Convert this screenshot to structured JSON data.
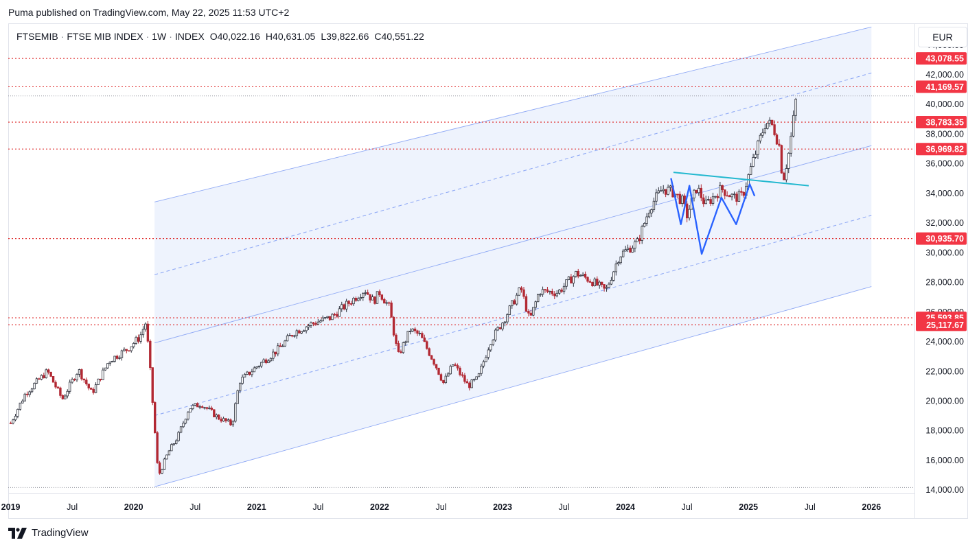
{
  "header": {
    "published_text": "Puma published on TradingView.com, May 22, 2025 11:53 UTC+2"
  },
  "legend": {
    "symbol": "FTSEMIB",
    "name": "FTSE MIB INDEX",
    "interval": "1W",
    "type": "INDEX",
    "open_label": "O",
    "open": "40,022.16",
    "high_label": "H",
    "high": "40,631.05",
    "low_label": "L",
    "low": "39,822.66",
    "close_label": "C",
    "close": "40,551.22"
  },
  "currency": "EUR",
  "footer": {
    "brand": "TradingView"
  },
  "colors": {
    "up": "#2a2e39",
    "down": "#b22833",
    "channel_fill": "#eef3fd",
    "channel_line": "#8fa9f5",
    "level_line": "#e03131",
    "label_bg": "#f23645",
    "pattern_line": "#2962ff",
    "neckline": "#22b8cf"
  },
  "chart_data": {
    "type": "candlestick",
    "title": "FTSEMIB · FTSE MIB INDEX · 1W · INDEX",
    "ylim": [
      13800,
      45400
    ],
    "y_ticks": [
      14000,
      16000,
      18000,
      20000,
      22000,
      24000,
      26000,
      28000,
      30000,
      32000,
      34000,
      36000,
      38000,
      40000,
      42000,
      44000
    ],
    "y_tick_labels": [
      "14,000.00",
      "16,000.00",
      "18,000.00",
      "20,000.00",
      "22,000.00",
      "24,000.00",
      "26,000.00",
      "28,000.00",
      "30,000.00",
      "32,000.00",
      "34,000.00",
      "36,000.00",
      "38,000.00",
      "40,000.00",
      "42,000.00",
      "44,000.00"
    ],
    "x_labels": [
      "2019",
      "Jul",
      "2020",
      "Jul",
      "2021",
      "Jul",
      "2022",
      "Jul",
      "2023",
      "Jul",
      "2024",
      "Jul",
      "2025",
      "Jul",
      "2026"
    ],
    "x_label_dates": [
      2019.0,
      2019.5,
      2020.0,
      2020.5,
      2021.0,
      2021.5,
      2022.0,
      2022.5,
      2023.0,
      2023.5,
      2024.0,
      2024.5,
      2025.0,
      2025.5,
      2026.0
    ],
    "horizontal_levels": [
      {
        "value": 43078.55,
        "label": "43,078.55"
      },
      {
        "value": 41169.57,
        "label": "41,169.57"
      },
      {
        "value": 38783.35,
        "label": "38,783.35"
      },
      {
        "value": 36969.82,
        "label": "36,969.82"
      },
      {
        "value": 30935.7,
        "label": "30,935.70"
      },
      {
        "value": 25593.85,
        "label": "25,593.85"
      },
      {
        "value": 25117.67,
        "label": "25,117.67"
      }
    ],
    "last_price": 40551.22,
    "keypoints": [
      [
        2019.0,
        18500
      ],
      [
        2019.12,
        20500
      ],
      [
        2019.3,
        22000
      ],
      [
        2019.42,
        20100
      ],
      [
        2019.55,
        22100
      ],
      [
        2019.66,
        20500
      ],
      [
        2019.8,
        22700
      ],
      [
        2019.95,
        23500
      ],
      [
        2020.05,
        24300
      ],
      [
        2020.1,
        25300
      ],
      [
        2020.13,
        22500
      ],
      [
        2020.2,
        14900
      ],
      [
        2020.28,
        16500
      ],
      [
        2020.36,
        17600
      ],
      [
        2020.45,
        19500
      ],
      [
        2020.55,
        19800
      ],
      [
        2020.68,
        18900
      ],
      [
        2020.8,
        18400
      ],
      [
        2020.86,
        21300
      ],
      [
        2021.0,
        22300
      ],
      [
        2021.18,
        23500
      ],
      [
        2021.3,
        24600
      ],
      [
        2021.45,
        25200
      ],
      [
        2021.6,
        25600
      ],
      [
        2021.75,
        26600
      ],
      [
        2021.88,
        27500
      ],
      [
        2021.95,
        26700
      ],
      [
        2022.0,
        27300
      ],
      [
        2022.08,
        26300
      ],
      [
        2022.15,
        23000
      ],
      [
        2022.25,
        24800
      ],
      [
        2022.33,
        24400
      ],
      [
        2022.45,
        22500
      ],
      [
        2022.52,
        21200
      ],
      [
        2022.6,
        22500
      ],
      [
        2022.72,
        21000
      ],
      [
        2022.8,
        21500
      ],
      [
        2022.9,
        24000
      ],
      [
        2023.0,
        25300
      ],
      [
        2023.15,
        27600
      ],
      [
        2023.22,
        25400
      ],
      [
        2023.3,
        27400
      ],
      [
        2023.45,
        27300
      ],
      [
        2023.6,
        28600
      ],
      [
        2023.72,
        28100
      ],
      [
        2023.84,
        27400
      ],
      [
        2023.95,
        29800
      ],
      [
        2024.1,
        30700
      ],
      [
        2024.2,
        33100
      ],
      [
        2024.3,
        34300
      ],
      [
        2024.38,
        34100
      ],
      [
        2024.46,
        33500
      ],
      [
        2024.5,
        32500
      ],
      [
        2024.58,
        34400
      ],
      [
        2024.65,
        33200
      ],
      [
        2024.78,
        34300
      ],
      [
        2024.88,
        33700
      ],
      [
        2024.95,
        33800
      ],
      [
        2025.05,
        36500
      ],
      [
        2025.14,
        38800
      ],
      [
        2025.2,
        38500
      ],
      [
        2025.25,
        37200
      ],
      [
        2025.28,
        34800
      ],
      [
        2025.33,
        36800
      ],
      [
        2025.36,
        38600
      ],
      [
        2025.39,
        40551
      ]
    ],
    "channel": {
      "upper": {
        "from": [
          2020.17,
          33400
        ],
        "to": [
          2026.0,
          45200
        ]
      },
      "upper_quarter": {
        "from": [
          2020.17,
          28500
        ],
        "to": [
          2026.0,
          42100
        ]
      },
      "middle": {
        "from": [
          2020.17,
          23900
        ],
        "to": [
          2026.0,
          37200
        ]
      },
      "lower_quarter": {
        "from": [
          2020.17,
          19000
        ],
        "to": [
          2026.0,
          32500
        ]
      },
      "lower": {
        "from": [
          2020.17,
          14200
        ],
        "to": [
          2026.0,
          27700
        ]
      }
    },
    "neckline": {
      "from": [
        2024.39,
        35400
      ],
      "to": [
        2025.49,
        34500
      ]
    },
    "pattern_points": [
      [
        2024.37,
        35000
      ],
      [
        2024.45,
        31900
      ],
      [
        2024.52,
        34500
      ],
      [
        2024.62,
        29900
      ],
      [
        2024.78,
        33700
      ],
      [
        2024.9,
        31900
      ],
      [
        2025.01,
        34600
      ],
      [
        2025.05,
        33800
      ]
    ]
  }
}
